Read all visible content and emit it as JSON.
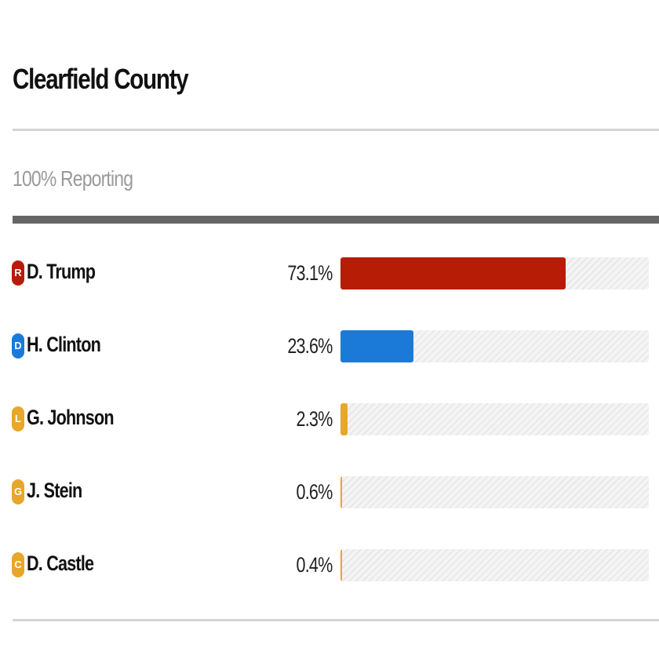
{
  "header": {
    "title": "Clearfield County",
    "reporting": "100% Reporting"
  },
  "colors": {
    "republican": "#b71c06",
    "democrat": "#1b7ad8",
    "libertarian": "#e6a72a",
    "green": "#e6a72a",
    "constitution": "#e6a72a"
  },
  "candidates": [
    {
      "party_letter": "R",
      "name": "D. Trump",
      "pct_label": "73.1%",
      "color": "#b71c06"
    },
    {
      "party_letter": "D",
      "name": "H. Clinton",
      "pct_label": "23.6%",
      "color": "#1b7ad8"
    },
    {
      "party_letter": "L",
      "name": "G. Johnson",
      "pct_label": "2.3%",
      "color": "#e6a72a"
    },
    {
      "party_letter": "G",
      "name": "J. Stein",
      "pct_label": "0.6%",
      "color": "#e6a72a"
    },
    {
      "party_letter": "C",
      "name": "D. Castle",
      "pct_label": "0.4%",
      "color": "#e6a72a"
    }
  ],
  "chart_data": {
    "type": "bar",
    "orientation": "horizontal",
    "title": "Clearfield County",
    "subtitle": "100% Reporting",
    "categories": [
      "D. Trump",
      "H. Clinton",
      "G. Johnson",
      "J. Stein",
      "D. Castle"
    ],
    "values": [
      73.1,
      23.6,
      2.3,
      0.6,
      0.4
    ],
    "unit": "%",
    "xlim": [
      0,
      100
    ],
    "grid": false
  }
}
